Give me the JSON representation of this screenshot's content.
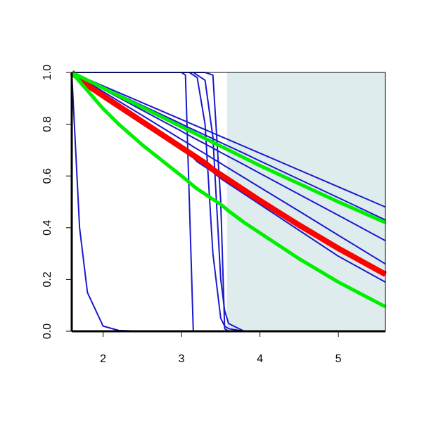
{
  "chart_data": {
    "type": "line",
    "x": [
      1.6,
      1.7,
      1.8,
      2.0,
      2.2,
      2.5,
      3.0,
      3.05,
      3.1,
      3.15,
      3.2,
      3.3,
      3.4,
      3.5,
      3.55,
      3.6,
      3.8,
      4.0,
      4.5,
      5.0,
      5.6
    ],
    "xlim": [
      1.6,
      5.6
    ],
    "ylim": [
      0,
      1
    ],
    "xticks": [
      2,
      3,
      4,
      5
    ],
    "yticks": [
      {
        "value": 0,
        "label": "0.0"
      },
      {
        "value": 0.2,
        "label": "0.2"
      },
      {
        "value": 0.4,
        "label": "0.4"
      },
      {
        "value": 0.6,
        "label": "0.6"
      },
      {
        "value": 0.8,
        "label": "0.8"
      },
      {
        "value": 1,
        "label": "1.0"
      }
    ],
    "shaded_xlim": [
      3.58,
      5.6
    ],
    "shade_color": "#deeced",
    "series": [
      {
        "color": "#1a1acd",
        "width": 2,
        "values": [
          1,
          0.987,
          0.974,
          0.948,
          0.922,
          0.883,
          0.818,
          0.8115,
          0.805,
          0.7985,
          0.792,
          0.779,
          0.766,
          0.753,
          0.7465,
          0.74,
          0.714,
          0.688,
          0.623,
          0.558,
          0.48
        ]
      },
      {
        "color": "#1a1acd",
        "width": 2,
        "values": [
          1,
          0.986,
          0.972,
          0.943,
          0.915,
          0.872,
          0.801,
          0.793,
          0.786,
          0.779,
          0.772,
          0.758,
          0.744,
          0.729,
          0.722,
          0.715,
          0.687,
          0.658,
          0.587,
          0.516,
          0.43
        ]
      },
      {
        "color": "#1a1acd",
        "width": 2,
        "values": [
          1,
          0.984,
          0.968,
          0.935,
          0.903,
          0.854,
          0.773,
          0.764,
          0.756,
          0.748,
          0.74,
          0.724,
          0.708,
          0.691,
          0.683,
          0.675,
          0.643,
          0.61,
          0.529,
          0.448,
          0.35
        ]
      },
      {
        "color": "#1a1acd",
        "width": 2,
        "values": [
          1,
          0.982,
          0.963,
          0.926,
          0.889,
          0.834,
          0.741,
          0.732,
          0.723,
          0.713,
          0.704,
          0.686,
          0.667,
          0.649,
          0.639,
          0.63,
          0.593,
          0.556,
          0.464,
          0.371,
          0.26
        ]
      },
      {
        "color": "#1a1acd",
        "width": 2,
        "values": [
          1,
          0.975,
          0.95,
          0.9,
          0.86,
          0.8,
          0.7,
          0.69,
          0.68,
          0.67,
          0.655,
          0.635,
          0.615,
          0.59,
          0.58,
          0.57,
          0.53,
          0.49,
          0.39,
          0.29,
          0.19
        ]
      },
      {
        "color": "#1a1acd",
        "width": 2,
        "values": [
          1,
          0.4,
          0.15,
          0.02,
          0.003,
          0,
          0,
          0,
          0,
          0,
          0,
          0,
          0,
          0,
          0,
          0,
          0,
          0,
          0,
          0,
          0
        ]
      },
      {
        "color": "#1a1acd",
        "width": 2,
        "values": [
          1,
          1,
          1,
          1,
          1,
          1,
          1,
          0.99,
          0.5,
          0,
          0,
          0,
          0,
          0,
          0,
          0,
          0,
          0,
          0,
          0,
          0
        ]
      },
      {
        "color": "#1a1acd",
        "width": 2,
        "values": [
          1,
          1,
          1,
          1,
          1,
          1,
          1,
          1,
          1,
          0.99,
          0.98,
          0.8,
          0.3,
          0.05,
          0.02,
          0.01,
          0,
          0,
          0,
          0,
          0
        ]
      },
      {
        "color": "#1a1acd",
        "width": 2,
        "values": [
          1,
          1,
          1,
          1,
          1,
          1,
          1,
          1,
          1,
          1,
          0.99,
          0.97,
          0.75,
          0.2,
          0.08,
          0.03,
          0,
          0,
          0,
          0,
          0
        ]
      },
      {
        "color": "#1a1acd",
        "width": 2,
        "values": [
          1,
          1,
          1,
          1,
          1,
          1,
          1,
          1,
          1,
          1,
          1,
          1,
          0.99,
          0.5,
          0.01,
          0,
          0,
          0,
          0,
          0,
          0
        ]
      },
      {
        "color": "#ff0000",
        "width": 8,
        "values": [
          1,
          0.975,
          0.95,
          0.91,
          0.87,
          0.81,
          0.71,
          0.7,
          0.69,
          0.68,
          0.67,
          0.65,
          0.625,
          0.605,
          0.595,
          0.585,
          0.545,
          0.505,
          0.41,
          0.32,
          0.22
        ]
      },
      {
        "color": "#00ee00",
        "width": 5,
        "values": [
          1,
          0.985,
          0.97,
          0.94,
          0.91,
          0.865,
          0.79,
          0.782,
          0.775,
          0.768,
          0.76,
          0.745,
          0.73,
          0.715,
          0.708,
          0.7,
          0.67,
          0.64,
          0.57,
          0.5,
          0.42
        ]
      },
      {
        "color": "#00ee00",
        "width": 5,
        "values": [
          1,
          0.965,
          0.93,
          0.86,
          0.8,
          0.72,
          0.6,
          0.588,
          0.575,
          0.562,
          0.55,
          0.53,
          0.51,
          0.49,
          0.478,
          0.465,
          0.42,
          0.38,
          0.28,
          0.19,
          0.095
        ]
      }
    ]
  }
}
